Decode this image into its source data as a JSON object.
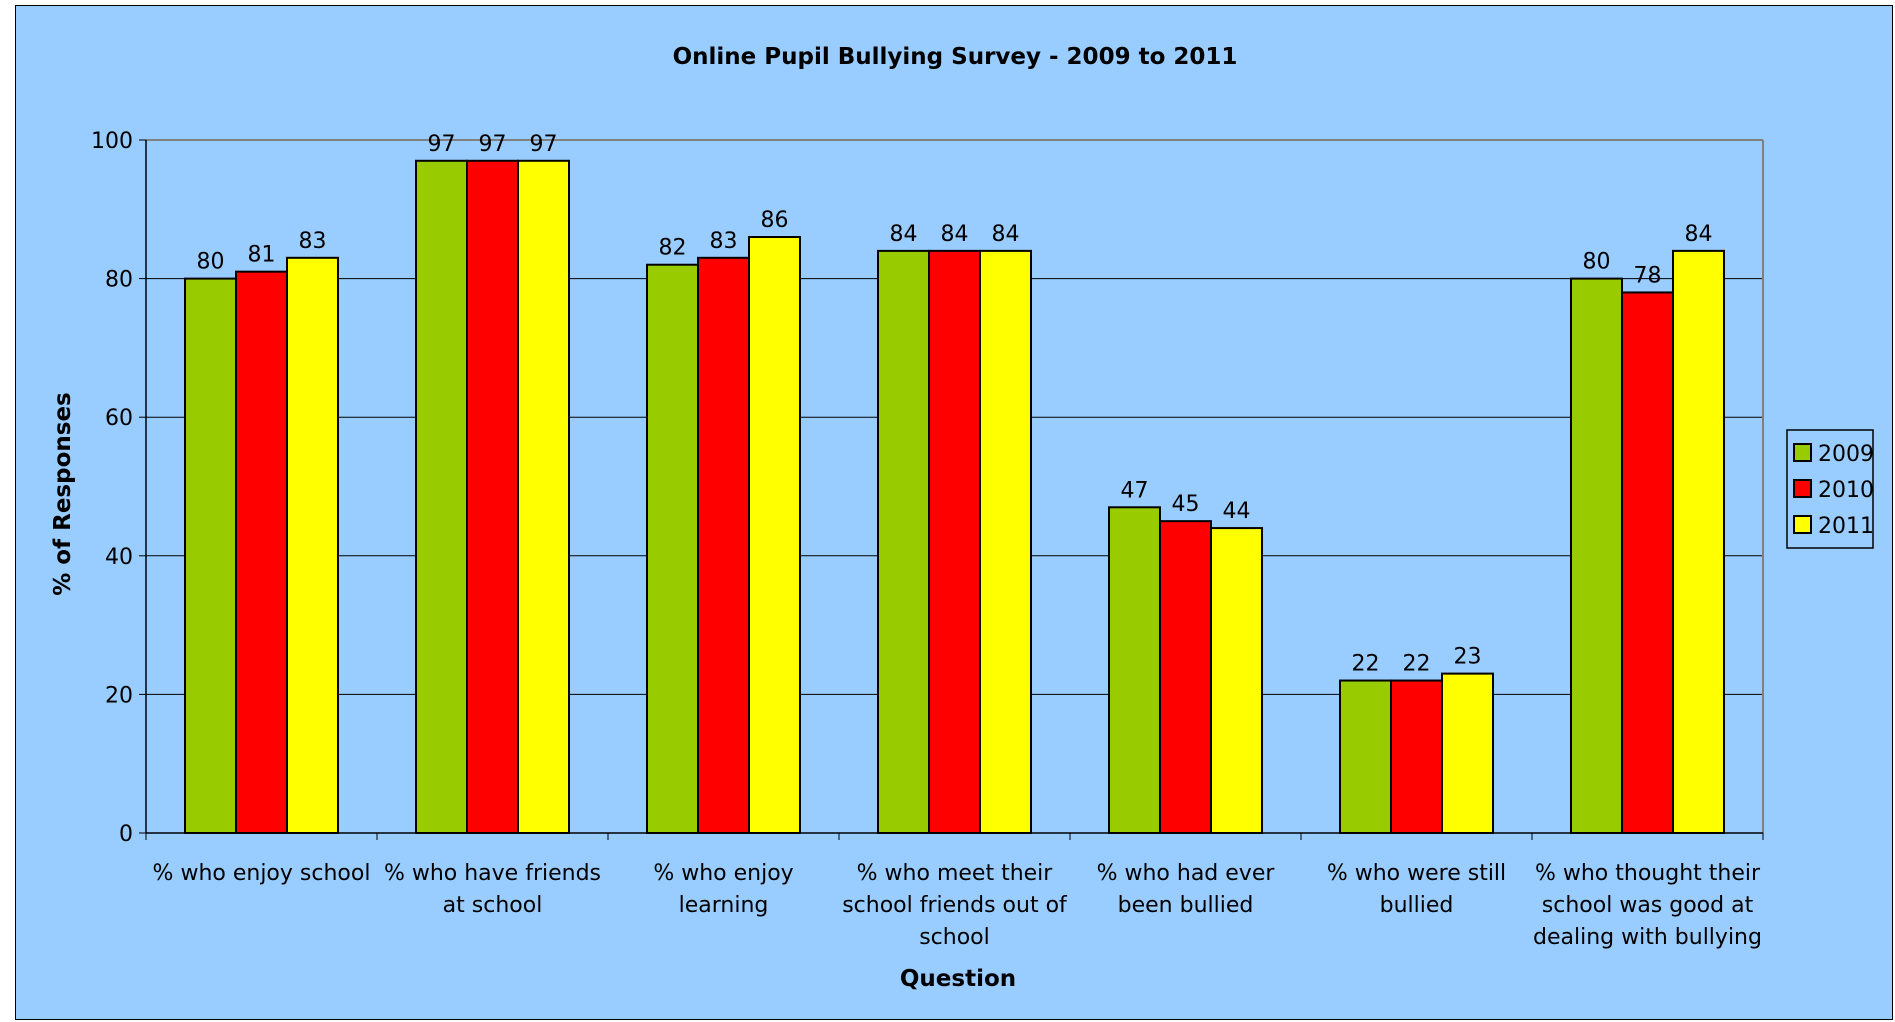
{
  "chart_data": {
    "type": "bar",
    "title": "Online Pupil Bullying Survey - 2009 to 2011",
    "xlabel": "Question",
    "ylabel": "% of Responses",
    "ylim": [
      0,
      100
    ],
    "yticks": [
      0,
      20,
      40,
      60,
      80,
      100
    ],
    "grid": true,
    "legend_position": "right",
    "categories": [
      [
        "% who enjoy school"
      ],
      [
        "% who have friends",
        "at school"
      ],
      [
        "% who enjoy",
        "learning"
      ],
      [
        "% who meet their",
        "school friends out of",
        "school"
      ],
      [
        "% who had ever",
        "been bullied"
      ],
      [
        "% who were still",
        "bullied"
      ],
      [
        "% who thought their",
        "school was good at",
        "dealing with bullying"
      ]
    ],
    "series": [
      {
        "name": "2009",
        "color": "#99cc00",
        "values": [
          80,
          97,
          82,
          84,
          47,
          22,
          80
        ]
      },
      {
        "name": "2010",
        "color": "#ff0000",
        "values": [
          81,
          97,
          83,
          84,
          45,
          22,
          78
        ]
      },
      {
        "name": "2011",
        "color": "#ffff00",
        "values": [
          83,
          97,
          86,
          84,
          44,
          23,
          84
        ]
      }
    ]
  }
}
